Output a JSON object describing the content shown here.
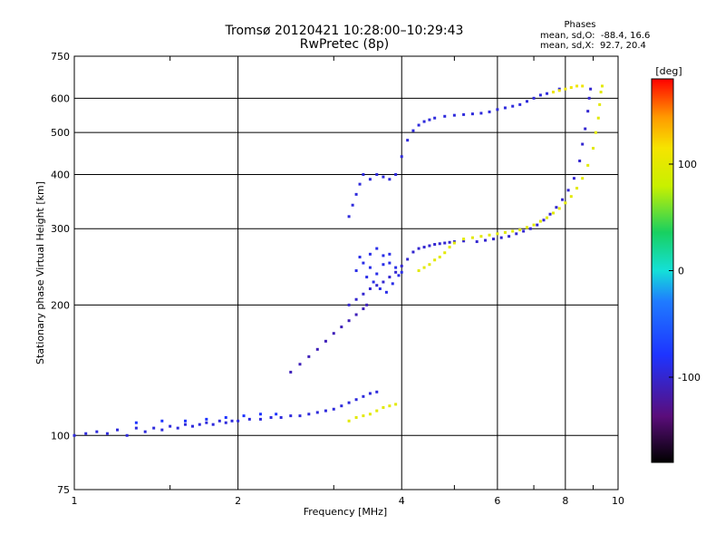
{
  "title_line1": "Tromsø 20120421 10:28:00–10:29:43",
  "title_line2": "RwPretec (8p)",
  "phases": {
    "label": "Phases",
    "row_o": "mean, sd,O:  -88.4, 16.6",
    "row_x": "mean, sd,X:  92.7, 20.4"
  },
  "chart_data": {
    "type": "scatter",
    "xlabel": "Frequency [MHz]",
    "ylabel": "Stationary phase Virtual Height [km]",
    "x_scale": "log",
    "y_scale": "log",
    "xlim": [
      1,
      10
    ],
    "ylim": [
      75,
      750
    ],
    "x_ticks": [
      1,
      2,
      4,
      6,
      8,
      10
    ],
    "y_ticks": [
      75,
      100,
      200,
      300,
      400,
      500,
      600,
      750
    ],
    "grid": true,
    "colorbar": {
      "unit": "[deg]",
      "range": [
        -180,
        180
      ],
      "ticks": [
        100,
        0,
        -100
      ],
      "colormap": "rainbow: black (-180) → purple → blue → cyan → green → yellow → orange → red (+180)"
    },
    "series": [
      {
        "points": [
          [
            1.0,
            100
          ],
          [
            1.05,
            101
          ],
          [
            1.1,
            102
          ],
          [
            1.15,
            101
          ],
          [
            1.2,
            103
          ],
          [
            1.25,
            100
          ],
          [
            1.3,
            104
          ],
          [
            1.35,
            102
          ],
          [
            1.4,
            104
          ],
          [
            1.45,
            103
          ],
          [
            1.5,
            105
          ],
          [
            1.55,
            104
          ],
          [
            1.6,
            106
          ],
          [
            1.65,
            105
          ],
          [
            1.7,
            106
          ],
          [
            1.75,
            107
          ],
          [
            1.8,
            106
          ],
          [
            1.85,
            108
          ],
          [
            1.9,
            107
          ],
          [
            1.95,
            108
          ],
          [
            2.0,
            108
          ],
          [
            2.1,
            109
          ],
          [
            2.2,
            109
          ],
          [
            2.3,
            110
          ],
          [
            2.4,
            110
          ],
          [
            2.5,
            111
          ],
          [
            2.6,
            111
          ],
          [
            2.7,
            112
          ],
          [
            2.8,
            113
          ],
          [
            2.9,
            114
          ],
          [
            3.0,
            115
          ],
          [
            3.1,
            117
          ],
          [
            3.2,
            119
          ],
          [
            3.3,
            121
          ],
          [
            3.4,
            123
          ],
          [
            3.5,
            125
          ],
          [
            3.6,
            126
          ]
        ],
        "phase_deg": -95
      },
      {
        "points": [
          [
            1.3,
            107
          ],
          [
            1.45,
            108
          ],
          [
            1.6,
            108
          ],
          [
            1.75,
            109
          ],
          [
            1.9,
            110
          ],
          [
            2.05,
            111
          ],
          [
            2.2,
            112
          ],
          [
            2.35,
            112
          ]
        ],
        "phase_deg": -80
      },
      {
        "points": [
          [
            3.2,
            108
          ],
          [
            3.3,
            110
          ],
          [
            3.4,
            111
          ],
          [
            3.5,
            112
          ],
          [
            3.6,
            114
          ],
          [
            3.7,
            116
          ],
          [
            3.8,
            117
          ],
          [
            3.9,
            118
          ]
        ],
        "phase_deg": 100
      },
      {
        "points": [
          [
            2.5,
            140
          ],
          [
            2.6,
            146
          ],
          [
            2.7,
            152
          ],
          [
            2.8,
            158
          ],
          [
            2.9,
            165
          ],
          [
            3.0,
            172
          ],
          [
            3.1,
            178
          ],
          [
            3.2,
            184
          ],
          [
            3.3,
            190
          ],
          [
            3.4,
            196
          ],
          [
            3.45,
            200
          ]
        ],
        "phase_deg": -110
      },
      {
        "points": [
          [
            3.2,
            200
          ],
          [
            3.3,
            206
          ],
          [
            3.4,
            212
          ],
          [
            3.5,
            218
          ],
          [
            3.6,
            222
          ],
          [
            3.7,
            226
          ],
          [
            3.8,
            232
          ],
          [
            3.9,
            238
          ],
          [
            4.0,
            246
          ],
          [
            4.1,
            255
          ],
          [
            4.2,
            265
          ],
          [
            4.3,
            270
          ],
          [
            4.4,
            272
          ],
          [
            4.5,
            274
          ],
          [
            4.6,
            276
          ],
          [
            4.7,
            277
          ],
          [
            4.8,
            278
          ],
          [
            4.9,
            279
          ],
          [
            5.0,
            280
          ],
          [
            5.2,
            281
          ]
        ],
        "phase_deg": -100
      },
      {
        "points": [
          [
            3.3,
            240
          ],
          [
            3.4,
            250
          ],
          [
            3.5,
            262
          ],
          [
            3.6,
            270
          ],
          [
            3.7,
            260
          ],
          [
            3.8,
            250
          ],
          [
            3.9,
            244
          ],
          [
            4.0,
            238
          ],
          [
            3.45,
            232
          ],
          [
            3.55,
            226
          ],
          [
            3.65,
            218
          ],
          [
            3.75,
            214
          ],
          [
            3.85,
            224
          ],
          [
            3.95,
            234
          ],
          [
            3.35,
            258
          ],
          [
            3.5,
            244
          ],
          [
            3.6,
            236
          ],
          [
            3.7,
            248
          ],
          [
            3.8,
            262
          ]
        ],
        "phase_deg": -90
      },
      {
        "points": [
          [
            3.2,
            320
          ],
          [
            3.25,
            340
          ],
          [
            3.3,
            360
          ],
          [
            3.35,
            380
          ],
          [
            3.4,
            400
          ],
          [
            3.5,
            390
          ],
          [
            3.6,
            400
          ],
          [
            3.7,
            395
          ],
          [
            3.8,
            390
          ],
          [
            3.9,
            400
          ],
          [
            4.0,
            440
          ],
          [
            4.1,
            480
          ],
          [
            4.2,
            505
          ],
          [
            4.3,
            520
          ],
          [
            4.4,
            530
          ],
          [
            4.5,
            535
          ],
          [
            4.6,
            540
          ],
          [
            4.8,
            545
          ],
          [
            5.0,
            548
          ],
          [
            5.2,
            550
          ],
          [
            5.4,
            552
          ],
          [
            5.6,
            554
          ],
          [
            5.8,
            558
          ],
          [
            6.0,
            565
          ],
          [
            6.2,
            570
          ],
          [
            6.4,
            575
          ],
          [
            6.6,
            580
          ],
          [
            6.8,
            590
          ],
          [
            7.0,
            600
          ],
          [
            7.2,
            610
          ],
          [
            7.4,
            615
          ],
          [
            7.6,
            620
          ],
          [
            7.8,
            630
          ]
        ],
        "phase_deg": -95
      },
      {
        "points": [
          [
            5.5,
            280
          ],
          [
            5.7,
            282
          ],
          [
            5.9,
            284
          ],
          [
            6.1,
            286
          ],
          [
            6.3,
            288
          ],
          [
            6.5,
            292
          ],
          [
            6.7,
            296
          ],
          [
            6.9,
            300
          ],
          [
            7.1,
            306
          ],
          [
            7.3,
            314
          ],
          [
            7.5,
            324
          ],
          [
            7.7,
            336
          ],
          [
            7.9,
            350
          ],
          [
            8.1,
            368
          ],
          [
            8.3,
            392
          ],
          [
            8.5,
            430
          ],
          [
            8.6,
            470
          ],
          [
            8.7,
            510
          ],
          [
            8.8,
            560
          ],
          [
            8.85,
            600
          ],
          [
            8.9,
            630
          ]
        ],
        "phase_deg": -100
      },
      {
        "points": [
          [
            4.3,
            240
          ],
          [
            4.4,
            244
          ],
          [
            4.5,
            248
          ],
          [
            4.6,
            254
          ],
          [
            4.7,
            258
          ],
          [
            4.8,
            264
          ],
          [
            4.9,
            272
          ],
          [
            5.0,
            278
          ],
          [
            5.2,
            284
          ],
          [
            5.4,
            286
          ],
          [
            5.6,
            288
          ],
          [
            5.8,
            290
          ],
          [
            6.0,
            292
          ],
          [
            6.2,
            294
          ],
          [
            6.4,
            296
          ],
          [
            6.6,
            298
          ],
          [
            6.8,
            302
          ],
          [
            7.0,
            306
          ],
          [
            7.2,
            312
          ],
          [
            7.4,
            318
          ],
          [
            7.6,
            326
          ],
          [
            7.8,
            334
          ],
          [
            8.0,
            344
          ],
          [
            8.2,
            356
          ],
          [
            8.4,
            372
          ],
          [
            8.6,
            392
          ],
          [
            8.8,
            420
          ],
          [
            9.0,
            460
          ],
          [
            9.1,
            500
          ],
          [
            9.2,
            540
          ],
          [
            9.25,
            580
          ],
          [
            9.3,
            620
          ],
          [
            9.35,
            640
          ]
        ],
        "phase_deg": 100
      },
      {
        "points": [
          [
            7.6,
            620
          ],
          [
            7.8,
            625
          ],
          [
            8.0,
            630
          ],
          [
            8.2,
            635
          ],
          [
            8.4,
            640
          ],
          [
            8.6,
            640
          ]
        ],
        "phase_deg": 110
      }
    ]
  }
}
